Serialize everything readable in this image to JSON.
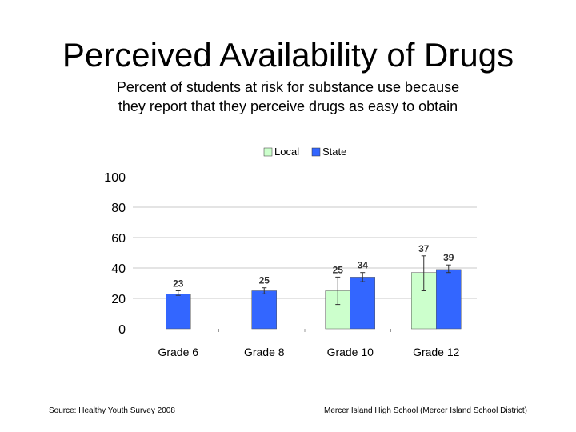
{
  "title": "Perceived Availability of Drugs",
  "subtitle_lines": [
    "Percent of students at risk for substance use because",
    "they report that they perceive drugs as easy to obtain"
  ],
  "footer": {
    "source": "Source: Healthy Youth Survey 2008",
    "school": "Mercer Island High School (Mercer Island School District)"
  },
  "chart_data": {
    "type": "bar",
    "categories": [
      "Grade 6",
      "Grade 8",
      "Grade 10",
      "Grade 12"
    ],
    "series": [
      {
        "name": "Local",
        "color": "#ccffcc",
        "values": [
          null,
          null,
          25,
          37
        ],
        "error_low": [
          null,
          null,
          16,
          25
        ],
        "error_high": [
          null,
          null,
          34,
          48
        ]
      },
      {
        "name": "State",
        "color": "#3366ff",
        "values": [
          23,
          25,
          34,
          39
        ],
        "error_low": [
          22,
          23,
          31,
          37
        ],
        "error_high": [
          25,
          27,
          37,
          42
        ]
      }
    ],
    "y_ticks": [
      "0",
      "20",
      "40",
      "60",
      "80",
      "100"
    ],
    "ylim": [
      0,
      100
    ],
    "legend_position": "top",
    "grid": true
  }
}
